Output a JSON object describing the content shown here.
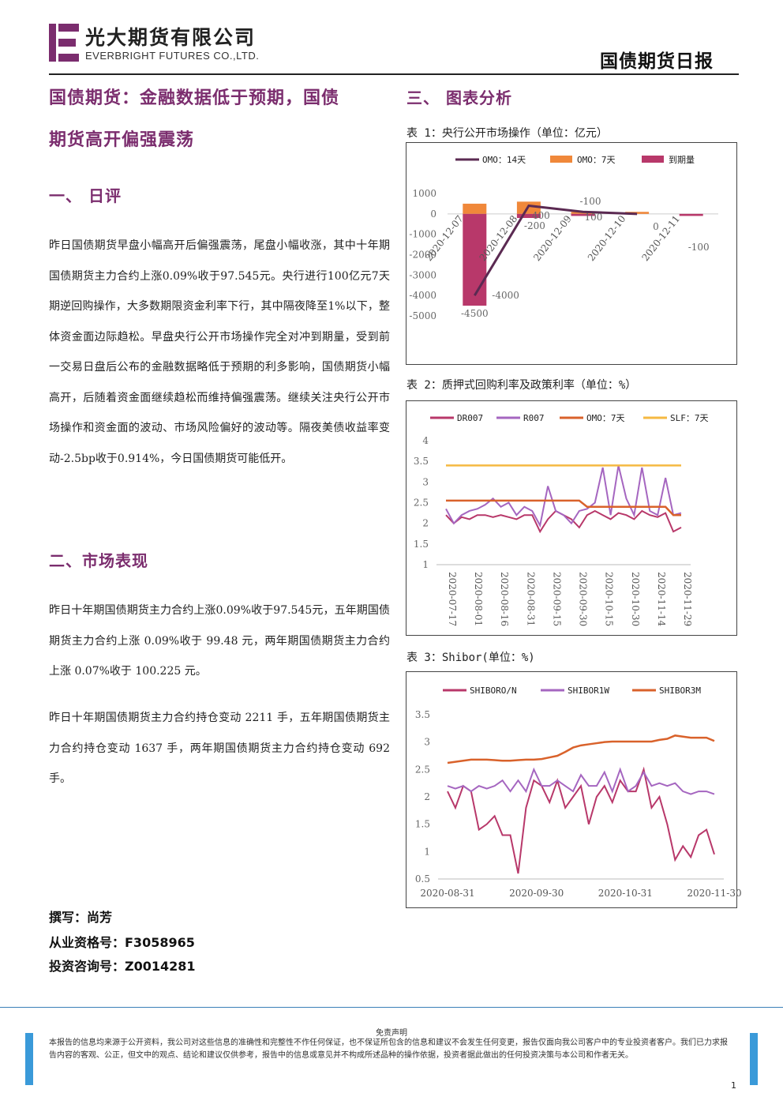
{
  "header": {
    "company_cn": "光大期货有限公司",
    "company_en": "EVERBRIGHT FUTURES CO.,LTD.",
    "report_name": "国债期货日报"
  },
  "left": {
    "headline_line1": "国债期货：金融数据低于预期，国债",
    "headline_line2": "期货高开偏强震荡",
    "section1_title": "一、  日评",
    "section1_paragraph": "昨日国债期货早盘小幅高开后偏强震荡，尾盘小幅收涨，其中十年期国债期货主力合约上涨0.09%收于97.545元。央行进行100亿元7天期逆回购操作，大多数期限资金利率下行，其中隔夜降至1%以下，整体资金面边际趋松。早盘央行公开市场操作完全对冲到期量，受到前一交易日盘后公布的金融数据略低于预期的利多影响，国债期货小幅高开，后随着资金面继续趋松而维持偏强震荡。继续关注央行公开市场操作和资金面的波动、市场风险偏好的波动等。隔夜美债收益率变动-2.5bp收于0.914%，今日国债期货可能低开。",
    "section2_title": "二、市场表现",
    "section2_para1": "昨日十年期国债期货主力合约上涨0.09%收于97.545元，五年期国债期货主力合约上涨 0.09%收于 99.48 元，两年期国债期货主力合约上涨 0.07%收于 100.225 元。",
    "section2_para2": "昨日十年期国债期货主力合约持仓变动 2211 手，五年期国债期货主力合约持仓变动 1637 手，两年期国债期货主力合约持仓变动 692 手。",
    "author_line": "撰写：尚芳",
    "license_line": "从业资格号：F3058965",
    "consult_line": "投资咨询号：Z0014281"
  },
  "right": {
    "section3_title": "三、  图表分析",
    "chart1_caption": "表 1：央行公开市场操作（单位：亿元）",
    "chart2_caption": "表 2：质押式回购利率及政策利率（单位：%）",
    "chart3_caption": "表 3：Shibor(单位：%)"
  },
  "chart_data": [
    {
      "type": "bar",
      "title": "表 1：央行公开市场操作（单位：亿元）",
      "categories": [
        "2020-12-07",
        "2020-12-08",
        "2020-12-09",
        "2020-12-10",
        "2020-12-11"
      ],
      "series": [
        {
          "name": "OMO：14天",
          "kind": "line",
          "color": "#5b2a52",
          "values": [
            -4000,
            400,
            100,
            0,
            null
          ]
        },
        {
          "name": "OMO：7天",
          "kind": "bar",
          "color": "#f0883a",
          "values": [
            500,
            600,
            100,
            100,
            0
          ]
        },
        {
          "name": "到期量",
          "kind": "bar",
          "color": "#b8386a",
          "values": [
            -4500,
            -200,
            -100,
            0,
            -100
          ]
        }
      ],
      "data_labels": [
        "-4500",
        "-4000",
        "400",
        "-200",
        "100",
        "-100",
        "0",
        "-100"
      ],
      "ylim": [
        -5000,
        1000
      ],
      "yticks": [
        "1000",
        "0",
        "-1000",
        "-2000",
        "-3000",
        "-4000",
        "-5000"
      ],
      "legend": "top"
    },
    {
      "type": "line",
      "title": "表 2：质押式回购利率及政策利率（单位：%）",
      "xticks": [
        "2020-07-17",
        "2020-08-01",
        "2020-08-16",
        "2020-08-31",
        "2020-09-15",
        "2020-09-30",
        "2020-10-15",
        "2020-10-30",
        "2020-11-14",
        "2020-11-29"
      ],
      "yticks": [
        "4",
        "3.5",
        "3",
        "2.5",
        "2",
        "1.5",
        "1"
      ],
      "ylim": [
        1,
        4
      ],
      "series": [
        {
          "name": "DR007",
          "color": "#b8386a",
          "values": [
            2.2,
            2.0,
            2.15,
            2.1,
            2.2,
            2.2,
            2.15,
            2.2,
            2.15,
            2.1,
            2.2,
            2.2,
            1.8,
            2.1,
            2.3,
            2.2,
            2.1,
            1.9,
            2.2,
            2.3,
            2.2,
            2.1,
            2.25,
            2.2,
            2.1,
            2.3,
            2.2,
            2.15,
            2.25,
            1.8,
            1.9
          ]
        },
        {
          "name": "R007",
          "color": "#a566c0",
          "values": [
            2.35,
            2.0,
            2.2,
            2.3,
            2.35,
            2.45,
            2.6,
            2.4,
            2.5,
            2.2,
            2.4,
            2.3,
            1.95,
            2.9,
            2.3,
            2.2,
            2.0,
            2.3,
            2.35,
            2.5,
            3.35,
            2.2,
            3.4,
            2.6,
            2.2,
            3.35,
            2.3,
            2.2,
            3.1,
            2.2,
            2.25
          ]
        },
        {
          "name": "OMO：7天",
          "color": "#d9622b",
          "values": [
            2.55,
            2.55,
            2.55,
            2.55,
            2.55,
            2.55,
            2.55,
            2.55,
            2.55,
            2.55,
            2.55,
            2.55,
            2.55,
            2.55,
            2.55,
            2.55,
            2.55,
            2.55,
            2.4,
            2.4,
            2.4,
            2.4,
            2.4,
            2.4,
            2.4,
            2.4,
            2.4,
            2.4,
            2.4,
            2.2,
            2.2
          ]
        },
        {
          "name": "SLF：7天",
          "color": "#f5b942",
          "values": [
            3.4,
            3.4,
            3.4,
            3.4,
            3.4,
            3.4,
            3.4,
            3.4,
            3.4,
            3.4,
            3.4,
            3.4,
            3.4,
            3.4,
            3.4,
            3.4,
            3.4,
            3.4,
            3.4,
            3.4,
            3.4,
            3.4,
            3.4,
            3.4,
            3.4,
            3.4,
            3.4,
            3.4,
            3.4,
            3.4,
            3.4
          ]
        }
      ],
      "legend": "top"
    },
    {
      "type": "line",
      "title": "表 3：Shibor(单位：%)",
      "xticks": [
        "2020-08-31",
        "2020-09-30",
        "2020-10-31",
        "2020-11-30"
      ],
      "yticks": [
        "3.5",
        "3",
        "2.5",
        "2",
        "1.5",
        "1",
        "0.5"
      ],
      "ylim": [
        0.5,
        3.5
      ],
      "series": [
        {
          "name": "SHIBORO/N",
          "color": "#b8386a",
          "values": [
            2.1,
            1.8,
            2.2,
            2.1,
            1.4,
            1.5,
            1.65,
            1.3,
            1.3,
            0.6,
            1.8,
            2.3,
            2.2,
            1.9,
            2.3,
            1.8,
            2.0,
            2.2,
            1.5,
            2.0,
            2.2,
            1.9,
            2.3,
            2.1,
            2.1,
            2.5,
            1.8,
            2.0,
            1.5,
            0.85,
            1.1,
            0.9,
            1.3,
            1.4,
            0.95
          ]
        },
        {
          "name": "SHIBOR1W",
          "color": "#a566c0",
          "values": [
            2.2,
            2.15,
            2.2,
            2.1,
            2.2,
            2.15,
            2.2,
            2.3,
            2.1,
            2.3,
            2.1,
            2.5,
            2.2,
            2.2,
            2.3,
            2.2,
            2.1,
            2.4,
            2.2,
            2.2,
            2.45,
            2.1,
            2.5,
            2.1,
            2.2,
            2.45,
            2.2,
            2.25,
            2.2,
            2.25,
            2.1,
            2.05,
            2.1,
            2.1,
            2.05
          ]
        },
        {
          "name": "SHIBOR3M",
          "color": "#d9622b",
          "values": [
            2.62,
            2.64,
            2.66,
            2.68,
            2.68,
            2.68,
            2.67,
            2.66,
            2.66,
            2.67,
            2.68,
            2.68,
            2.69,
            2.72,
            2.75,
            2.82,
            2.9,
            2.94,
            2.96,
            2.98,
            3.0,
            3.01,
            3.01,
            3.01,
            3.01,
            3.01,
            3.01,
            3.04,
            3.06,
            3.12,
            3.1,
            3.08,
            3.08,
            3.08,
            3.02
          ]
        }
      ],
      "legend": "top"
    }
  ],
  "footer": {
    "disclaimer_title": "免责声明",
    "disclaimer_text": "本报告的信息均来源于公开资料，我公司对这些信息的准确性和完整性不作任何保证，也不保证所包含的信息和建议不会发生任何变更，报告仅面向我公司客户中的专业投资者客户。我们已力求报告内容的客观、公正，但文中的观点、结论和建议仅供参考，报告中的信息或意见并不构成所述品种的操作依据，投资者据此做出的任何投资决策与本公司和作者无关。",
    "page_number": "1"
  }
}
